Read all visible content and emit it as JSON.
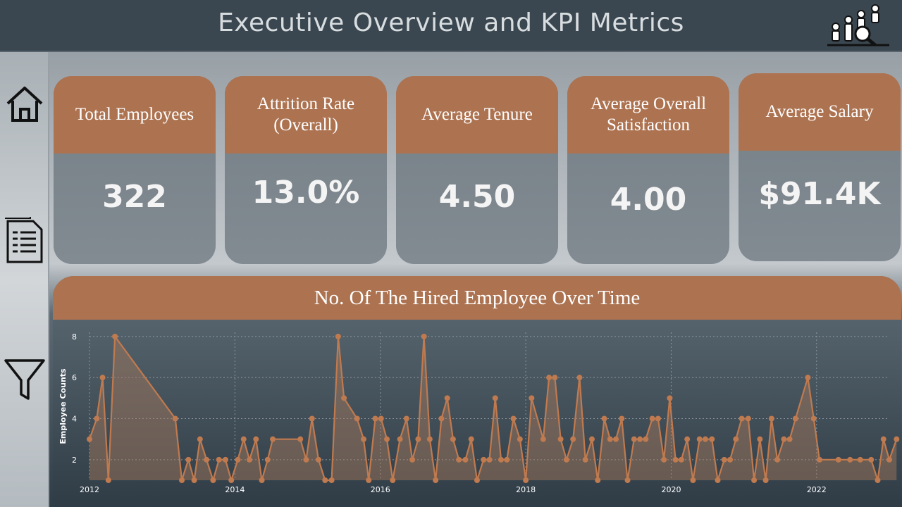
{
  "header": {
    "title": "Executive Overview and KPI Metrics",
    "logo_icon": "analytics-people-icon"
  },
  "sidebar": {
    "items": [
      {
        "name": "home",
        "icon": "home-icon"
      },
      {
        "name": "report",
        "icon": "document-icon"
      },
      {
        "name": "filter",
        "icon": "filter-icon"
      }
    ]
  },
  "kpis": [
    {
      "label": "Total Employees",
      "value": "322"
    },
    {
      "label": "Attrition Rate (Overall)",
      "value": "13.0%"
    },
    {
      "label": "Average Tenure",
      "value": "4.50"
    },
    {
      "label": "Average Overall Satisfaction",
      "value": "4.00"
    },
    {
      "label": "Average Salary",
      "value": "$91.4K"
    }
  ],
  "colors": {
    "accent": "#ad7351",
    "line": "#c07a4f",
    "header": "#3b4750"
  },
  "chart_data": {
    "type": "area",
    "title": "No. Of The Hired Employee Over Time",
    "xlabel": "",
    "ylabel": "Employee Counts",
    "x_ticks": [
      "2012",
      "2014",
      "2016",
      "2018",
      "2020",
      "2022"
    ],
    "y_ticks": [
      2,
      4,
      6,
      8
    ],
    "ylim": [
      1,
      8.2
    ],
    "xlim": [
      2012.0,
      2023.0
    ],
    "grid": true,
    "points": [
      [
        2012.0,
        3
      ],
      [
        2012.1,
        4
      ],
      [
        2012.18,
        6
      ],
      [
        2012.26,
        1
      ],
      [
        2012.35,
        8
      ],
      [
        2013.18,
        4
      ],
      [
        2013.27,
        1
      ],
      [
        2013.36,
        2
      ],
      [
        2013.44,
        1
      ],
      [
        2013.52,
        3
      ],
      [
        2013.61,
        2
      ],
      [
        2013.7,
        1
      ],
      [
        2013.78,
        2
      ],
      [
        2013.87,
        2
      ],
      [
        2013.95,
        1
      ],
      [
        2014.04,
        2
      ],
      [
        2014.12,
        3
      ],
      [
        2014.2,
        2
      ],
      [
        2014.29,
        3
      ],
      [
        2014.37,
        1
      ],
      [
        2014.45,
        2
      ],
      [
        2014.52,
        3
      ],
      [
        2014.9,
        3
      ],
      [
        2014.98,
        2
      ],
      [
        2015.06,
        4
      ],
      [
        2015.15,
        2
      ],
      [
        2015.24,
        1
      ],
      [
        2015.33,
        1
      ],
      [
        2015.42,
        8
      ],
      [
        2015.5,
        5
      ],
      [
        2015.68,
        4
      ],
      [
        2015.77,
        3
      ],
      [
        2015.84,
        1
      ],
      [
        2015.93,
        4
      ],
      [
        2016.01,
        4
      ],
      [
        2016.09,
        3
      ],
      [
        2016.17,
        1
      ],
      [
        2016.27,
        3
      ],
      [
        2016.36,
        4
      ],
      [
        2016.44,
        2
      ],
      [
        2016.52,
        3
      ],
      [
        2016.6,
        8
      ],
      [
        2016.68,
        3
      ],
      [
        2016.76,
        1
      ],
      [
        2016.84,
        4
      ],
      [
        2016.92,
        5
      ],
      [
        2017.0,
        3
      ],
      [
        2017.08,
        2
      ],
      [
        2017.17,
        2
      ],
      [
        2017.25,
        3
      ],
      [
        2017.33,
        1
      ],
      [
        2017.42,
        2
      ],
      [
        2017.5,
        2
      ],
      [
        2017.58,
        5
      ],
      [
        2017.66,
        2
      ],
      [
        2017.74,
        2
      ],
      [
        2017.83,
        4
      ],
      [
        2017.92,
        3
      ],
      [
        2018.0,
        1
      ],
      [
        2018.08,
        5
      ],
      [
        2018.24,
        3
      ],
      [
        2018.32,
        6
      ],
      [
        2018.4,
        6
      ],
      [
        2018.48,
        3
      ],
      [
        2018.56,
        2
      ],
      [
        2018.65,
        3
      ],
      [
        2018.74,
        6
      ],
      [
        2018.82,
        2
      ],
      [
        2018.91,
        3
      ],
      [
        2018.99,
        1
      ],
      [
        2019.08,
        4
      ],
      [
        2019.16,
        3
      ],
      [
        2019.24,
        3
      ],
      [
        2019.32,
        4
      ],
      [
        2019.4,
        1
      ],
      [
        2019.49,
        3
      ],
      [
        2019.57,
        3
      ],
      [
        2019.65,
        3
      ],
      [
        2019.74,
        4
      ],
      [
        2019.82,
        4
      ],
      [
        2019.9,
        2
      ],
      [
        2019.98,
        5
      ],
      [
        2020.06,
        2
      ],
      [
        2020.14,
        2
      ],
      [
        2020.22,
        3
      ],
      [
        2020.3,
        1
      ],
      [
        2020.39,
        3
      ],
      [
        2020.47,
        3
      ],
      [
        2020.56,
        3
      ],
      [
        2020.64,
        1
      ],
      [
        2020.73,
        2
      ],
      [
        2020.81,
        2
      ],
      [
        2020.89,
        3
      ],
      [
        2020.97,
        4
      ],
      [
        2021.06,
        4
      ],
      [
        2021.14,
        1
      ],
      [
        2021.22,
        3
      ],
      [
        2021.3,
        1
      ],
      [
        2021.38,
        4
      ],
      [
        2021.46,
        2
      ],
      [
        2021.55,
        3
      ],
      [
        2021.63,
        3
      ],
      [
        2021.71,
        4
      ],
      [
        2021.88,
        6
      ],
      [
        2021.96,
        4
      ],
      [
        2022.04,
        2
      ],
      [
        2022.3,
        2
      ],
      [
        2022.46,
        2
      ],
      [
        2022.6,
        2
      ],
      [
        2022.75,
        2
      ],
      [
        2022.84,
        1
      ],
      [
        2022.92,
        3
      ],
      [
        2023.0,
        2
      ],
      [
        2023.1,
        3
      ]
    ]
  }
}
